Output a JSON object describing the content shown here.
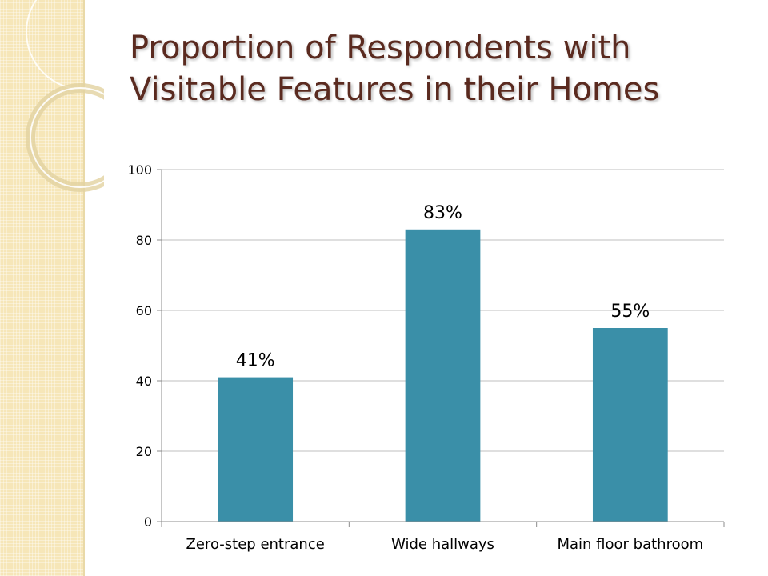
{
  "slide": {
    "title": "Proportion of Respondents with Visitable Features in their Homes"
  },
  "colors": {
    "bar": "#3a8fa8",
    "gridline": "#bfbfbf",
    "axis": "#8c8c8c",
    "title": "#5a2a1f",
    "side_band": "#f6e6b8"
  },
  "chart_data": {
    "type": "bar",
    "title": "",
    "xlabel": "",
    "ylabel": "",
    "categories": [
      "Zero-step entrance",
      "Wide hallways",
      "Main floor bathroom"
    ],
    "values": [
      41,
      83,
      55
    ],
    "data_labels": [
      "41%",
      "83%",
      "55%"
    ],
    "ylim": [
      0,
      100
    ],
    "yticks": [
      0,
      20,
      40,
      60,
      80,
      100
    ],
    "grid": true,
    "legend": "none"
  }
}
